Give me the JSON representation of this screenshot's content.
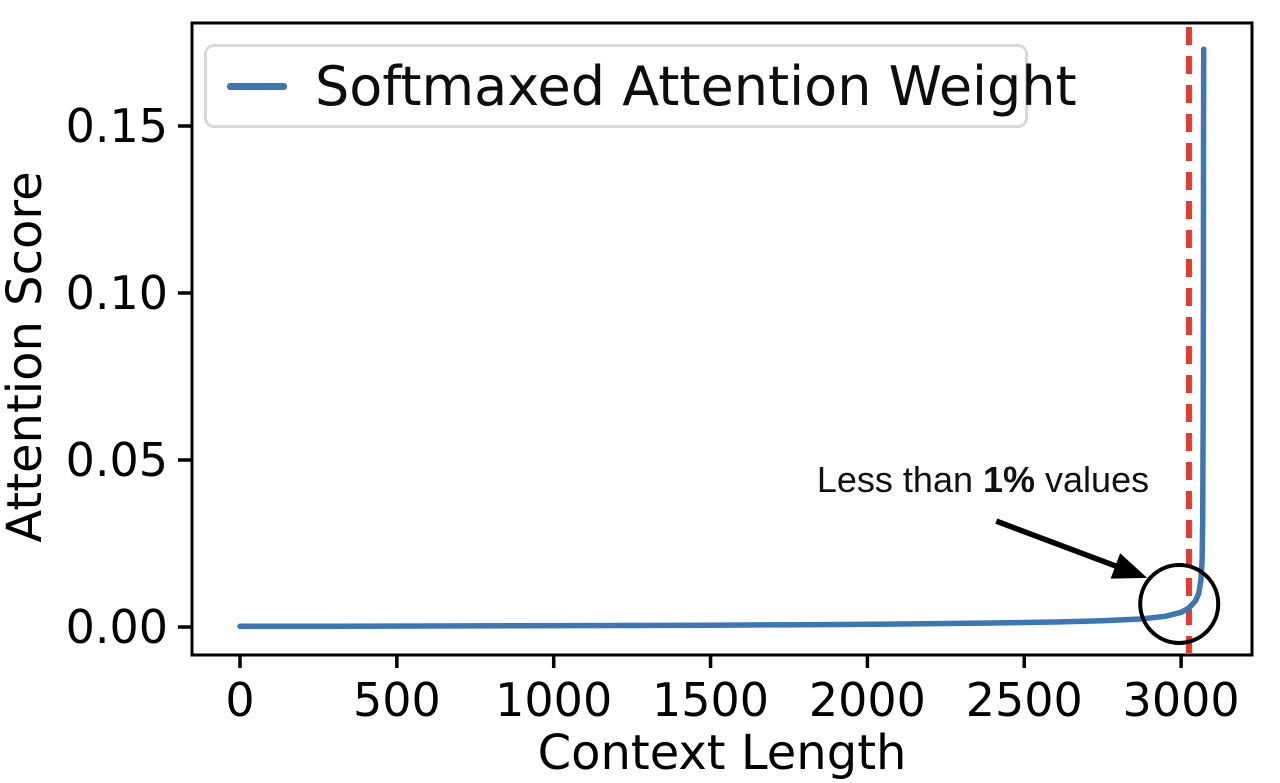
{
  "chart_data": {
    "type": "line",
    "title": "",
    "xlabel": "Context Length",
    "ylabel": "Attention Score",
    "xlim": [
      -154,
      3228
    ],
    "ylim": [
      -0.0084,
      0.1808
    ],
    "grid": false,
    "x_ticks": [
      0,
      500,
      1000,
      1500,
      2000,
      2500,
      3000
    ],
    "x_tick_labels": [
      "0",
      "500",
      "1000",
      "1500",
      "2000",
      "2500",
      "3000"
    ],
    "y_ticks": [
      0.0,
      0.05,
      0.1,
      0.15
    ],
    "y_tick_labels": [
      "0.00",
      "0.05",
      "0.10",
      "0.15"
    ],
    "legend": {
      "position": "upper left",
      "entries": [
        {
          "label": "Softmaxed Attention Weight",
          "color": "#3d76b4"
        }
      ]
    },
    "series": [
      {
        "name": "Softmaxed Attention Weight",
        "color": "#3d76b4",
        "line_width": 5.5,
        "points": [
          [
            0,
            0.0002
          ],
          [
            300,
            0.00025
          ],
          [
            600,
            0.0003
          ],
          [
            900,
            0.0004
          ],
          [
            1200,
            0.00045
          ],
          [
            1500,
            0.00055
          ],
          [
            1800,
            0.0007
          ],
          [
            2100,
            0.0009
          ],
          [
            2400,
            0.0012
          ],
          [
            2600,
            0.0015
          ],
          [
            2750,
            0.0019
          ],
          [
            2870,
            0.0024
          ],
          [
            2950,
            0.0032
          ],
          [
            3000,
            0.0044
          ],
          [
            3025,
            0.0057
          ],
          [
            3045,
            0.0077
          ],
          [
            3056,
            0.01
          ],
          [
            3063,
            0.014
          ],
          [
            3067,
            0.02
          ],
          [
            3069,
            0.032
          ],
          [
            3070,
            0.06
          ],
          [
            3071,
            0.1
          ],
          [
            3071.5,
            0.14
          ],
          [
            3072,
            0.173
          ]
        ]
      }
    ],
    "peak": {
      "x": 3072,
      "y": 0.173
    },
    "vline": {
      "x": 3025,
      "color": "#e8392c",
      "style": "dashed",
      "width": 6
    },
    "annotation": {
      "text_before": "Less than ",
      "text_bold": "1%",
      "text_after": " values",
      "arrow": {
        "from": [
          2411,
          0.0317
        ],
        "to": [
          2892,
          0.0147
        ],
        "color": "#000000"
      },
      "circle": {
        "x": 2994,
        "y": 0.0069,
        "radius_px": 39,
        "color": "#000000"
      }
    }
  }
}
